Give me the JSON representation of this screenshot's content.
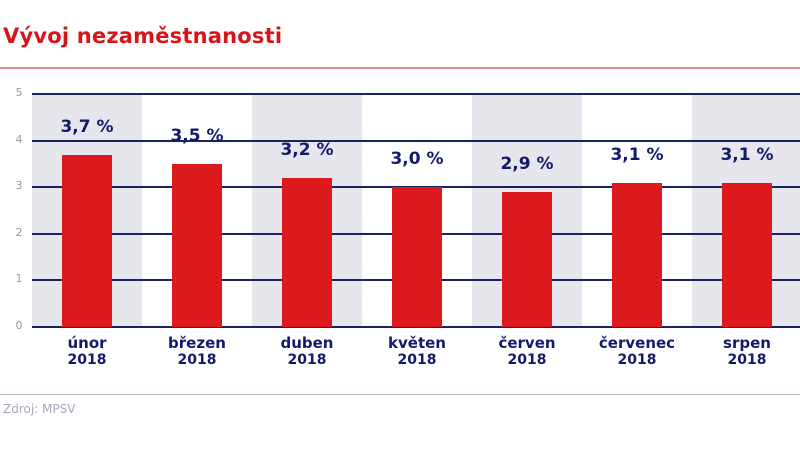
{
  "header": {
    "title": "Vývoj nezaměstnanosti"
  },
  "footer": {
    "source": "Zdroj: MPSV"
  },
  "colors": {
    "title": "#d7141a",
    "bar": "#dc1a1d",
    "text": "#141a6b",
    "band": "#e6e6ec",
    "grid": "#1b2266"
  },
  "chart_data": {
    "type": "bar",
    "title": "Vývoj nezaměstnanosti",
    "xlabel": "",
    "ylabel": "",
    "ylim": [
      0,
      5
    ],
    "yticks": [
      0,
      1,
      2,
      3,
      4,
      5
    ],
    "grid": true,
    "legend": "none",
    "categories": [
      "únor 2018",
      "březen 2018",
      "duben 2018",
      "květen 2018",
      "červen 2018",
      "červenec 2018",
      "srpen 2018"
    ],
    "months": [
      "únor",
      "březen",
      "duben",
      "květen",
      "červen",
      "červenec",
      "srpen"
    ],
    "years": [
      "2018",
      "2018",
      "2018",
      "2018",
      "2018",
      "2018",
      "2018"
    ],
    "values": [
      3.7,
      3.5,
      3.2,
      3.0,
      2.9,
      3.1,
      3.1
    ],
    "value_labels": [
      "3,7 %",
      "3,5 %",
      "3,2 %",
      "3,0 %",
      "2,9 %",
      "3,1 %",
      "3,1 %"
    ],
    "source": "Zdroj: MPSV"
  }
}
